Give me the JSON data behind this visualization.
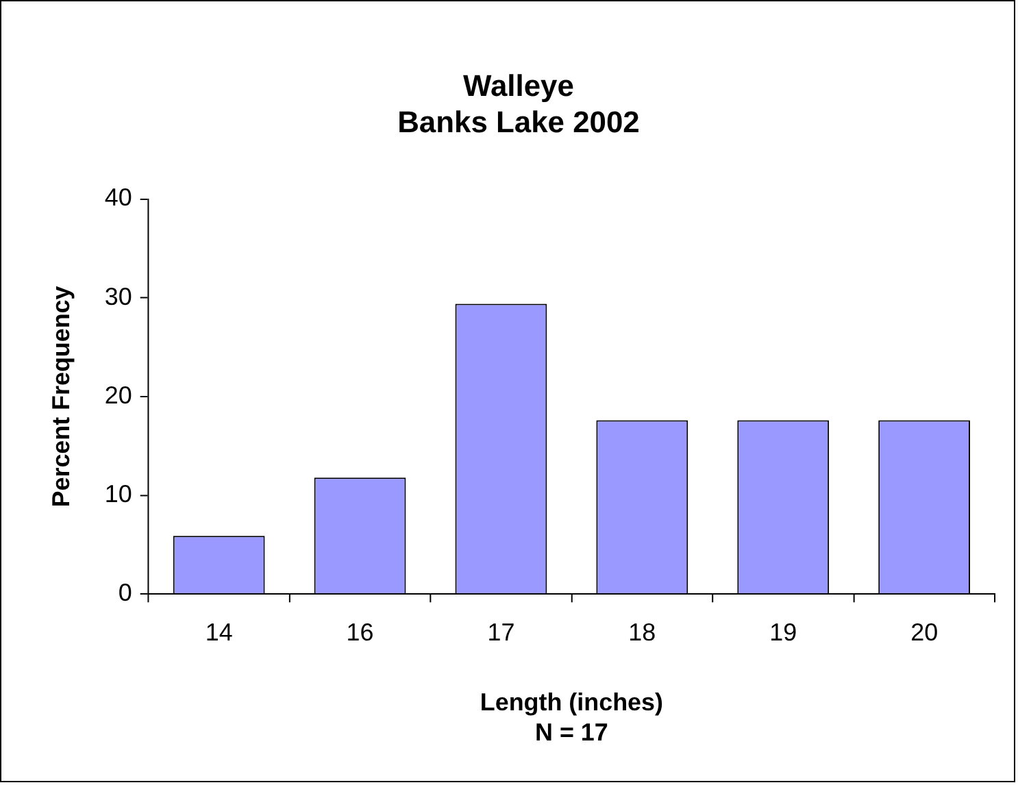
{
  "chart_data": {
    "type": "bar",
    "title": [
      "Walleye",
      "Banks Lake 2002"
    ],
    "xlabel": "Length (inches)",
    "ylabel": "Percent Frequency",
    "annotations": [
      "N = 17"
    ],
    "categories": [
      "14",
      "16",
      "17",
      "18",
      "19",
      "20"
    ],
    "values": [
      5.9,
      11.8,
      29.4,
      17.6,
      17.6,
      17.6
    ],
    "color": "#9999ff",
    "ylim": [
      0,
      40
    ],
    "yticks": [
      0,
      10,
      20,
      30,
      40
    ],
    "grid": false,
    "legend": false
  }
}
